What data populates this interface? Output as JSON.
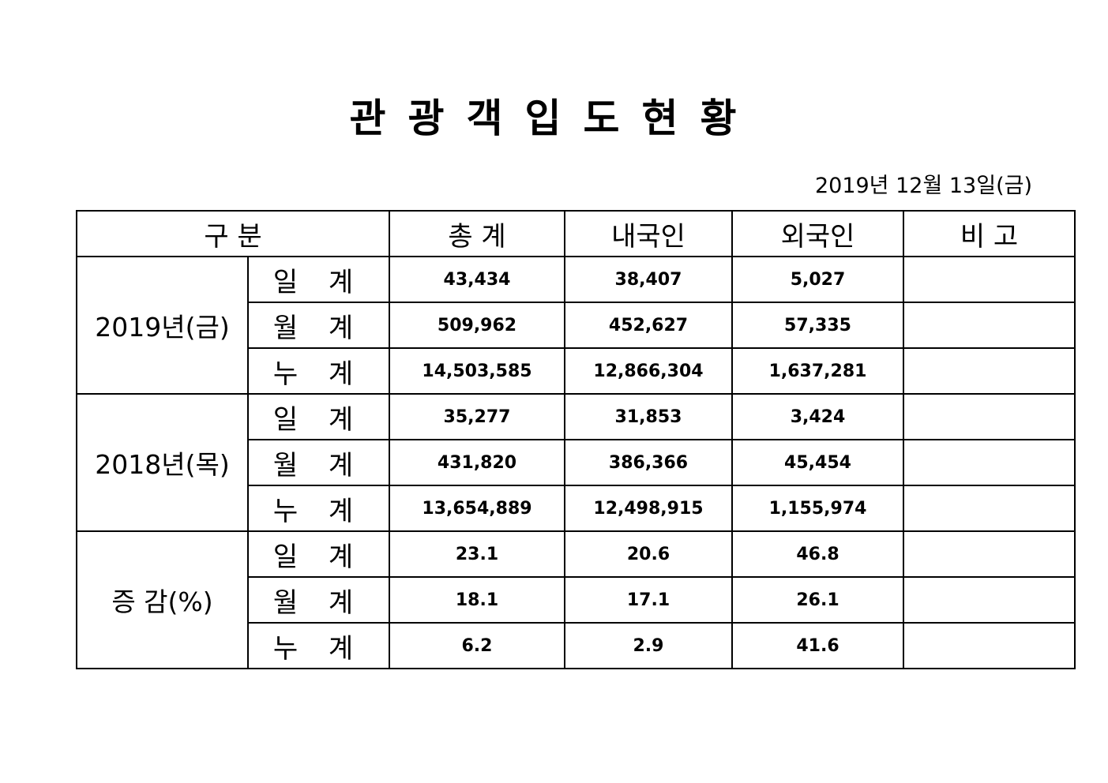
{
  "title": "관광객입도현황",
  "date": "2019년  12월  13일(금)",
  "headers": [
    "구  분",
    "총   계",
    "내국인",
    "외국인",
    "비   고"
  ],
  "groups": [
    {
      "label": "2019년(금)",
      "rows": [
        {
          "label": "일 계",
          "values": [
            "43,434",
            "38,407",
            "5,027",
            ""
          ]
        },
        {
          "label": "월 계",
          "values": [
            "509,962",
            "452,627",
            "57,335",
            ""
          ]
        },
        {
          "label": "누 계",
          "values": [
            "14,503,585",
            "12,866,304",
            "1,637,281",
            ""
          ]
        }
      ]
    },
    {
      "label": "2018년(목)",
      "rows": [
        {
          "label": "일 계",
          "values": [
            "35,277",
            "31,853",
            "3,424",
            ""
          ]
        },
        {
          "label": "월 계",
          "values": [
            "431,820",
            "386,366",
            "45,454",
            ""
          ]
        },
        {
          "label": "누 계",
          "values": [
            "13,654,889",
            "12,498,915",
            "1,155,974",
            ""
          ]
        }
      ]
    },
    {
      "label": "증 감(%)",
      "rows": [
        {
          "label": "일 계",
          "values": [
            "23.1",
            "20.6",
            "46.8",
            ""
          ]
        },
        {
          "label": "월 계",
          "values": [
            "18.1",
            "17.1",
            "26.1",
            ""
          ]
        },
        {
          "label": "누 계",
          "values": [
            "6.2",
            "2.9",
            "41.6",
            ""
          ]
        }
      ]
    }
  ]
}
